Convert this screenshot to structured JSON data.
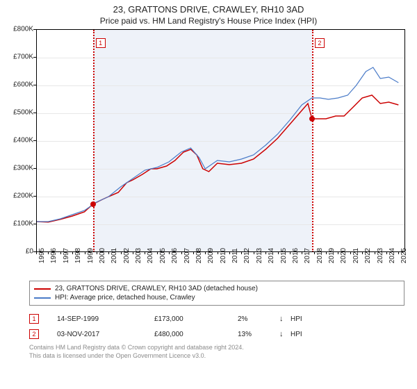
{
  "title": "23, GRATTONS DRIVE, CRAWLEY, RH10 3AD",
  "subtitle": "Price paid vs. HM Land Registry's House Price Index (HPI)",
  "chart": {
    "type": "line",
    "background_color": "#ffffff",
    "shaded_band_color": "#eef2f9",
    "grid_color": "#e7e7e7",
    "axis_color": "#000000",
    "ylim": [
      0,
      800000
    ],
    "ytick_step": 100000,
    "ytick_labels": [
      "£0",
      "£100K",
      "£200K",
      "£300K",
      "£400K",
      "£500K",
      "£600K",
      "£700K",
      "£800K"
    ],
    "xlim_year": [
      1995,
      2025.5
    ],
    "xtick_years": [
      1995,
      1996,
      1997,
      1998,
      1999,
      2000,
      2001,
      2002,
      2003,
      2004,
      2005,
      2006,
      2007,
      2008,
      2009,
      2010,
      2011,
      2012,
      2013,
      2014,
      2015,
      2016,
      2017,
      2018,
      2019,
      2020,
      2021,
      2022,
      2023,
      2024,
      2025
    ],
    "tick_fontsize": 10,
    "shaded_band_year": [
      1999.7,
      2017.84
    ],
    "series": [
      {
        "name": "price_paid",
        "label": "23, GRATTONS DRIVE, CRAWLEY, RH10 3AD (detached house)",
        "color": "#cc0000",
        "line_width": 1.5,
        "data": [
          [
            1995.0,
            110000
          ],
          [
            1996.0,
            108000
          ],
          [
            1997.0,
            118000
          ],
          [
            1998.0,
            130000
          ],
          [
            1999.0,
            145000
          ],
          [
            1999.7,
            173000
          ],
          [
            2000.5,
            190000
          ],
          [
            2001.0,
            200000
          ],
          [
            2001.8,
            215000
          ],
          [
            2002.5,
            250000
          ],
          [
            2003.0,
            260000
          ],
          [
            2003.8,
            280000
          ],
          [
            2004.5,
            300000
          ],
          [
            2005.0,
            300000
          ],
          [
            2005.8,
            310000
          ],
          [
            2006.5,
            330000
          ],
          [
            2007.2,
            360000
          ],
          [
            2007.8,
            370000
          ],
          [
            2008.3,
            350000
          ],
          [
            2008.8,
            300000
          ],
          [
            2009.3,
            290000
          ],
          [
            2010.0,
            320000
          ],
          [
            2011.0,
            315000
          ],
          [
            2012.0,
            320000
          ],
          [
            2013.0,
            335000
          ],
          [
            2014.0,
            370000
          ],
          [
            2015.0,
            410000
          ],
          [
            2016.0,
            460000
          ],
          [
            2016.8,
            500000
          ],
          [
            2017.5,
            535000
          ],
          [
            2017.84,
            480000
          ],
          [
            2018.5,
            480000
          ],
          [
            2019.0,
            480000
          ],
          [
            2019.8,
            490000
          ],
          [
            2020.5,
            490000
          ],
          [
            2021.2,
            520000
          ],
          [
            2022.0,
            555000
          ],
          [
            2022.8,
            565000
          ],
          [
            2023.5,
            535000
          ],
          [
            2024.2,
            540000
          ],
          [
            2025.0,
            530000
          ]
        ]
      },
      {
        "name": "hpi",
        "label": "HPI: Average price, detached house, Crawley",
        "color": "#4a7bc8",
        "line_width": 1.2,
        "data": [
          [
            1995.0,
            110000
          ],
          [
            1996.0,
            110000
          ],
          [
            1997.0,
            120000
          ],
          [
            1998.0,
            135000
          ],
          [
            1999.0,
            150000
          ],
          [
            2000.0,
            180000
          ],
          [
            2001.0,
            200000
          ],
          [
            2002.0,
            235000
          ],
          [
            2003.0,
            265000
          ],
          [
            2004.0,
            295000
          ],
          [
            2005.0,
            305000
          ],
          [
            2006.0,
            325000
          ],
          [
            2007.0,
            360000
          ],
          [
            2007.8,
            375000
          ],
          [
            2008.5,
            340000
          ],
          [
            2009.0,
            300000
          ],
          [
            2010.0,
            330000
          ],
          [
            2011.0,
            325000
          ],
          [
            2012.0,
            335000
          ],
          [
            2013.0,
            350000
          ],
          [
            2014.0,
            385000
          ],
          [
            2015.0,
            425000
          ],
          [
            2016.0,
            475000
          ],
          [
            2017.0,
            530000
          ],
          [
            2017.84,
            555000
          ],
          [
            2018.5,
            555000
          ],
          [
            2019.2,
            550000
          ],
          [
            2020.0,
            555000
          ],
          [
            2020.8,
            565000
          ],
          [
            2021.5,
            600000
          ],
          [
            2022.3,
            650000
          ],
          [
            2022.9,
            665000
          ],
          [
            2023.5,
            625000
          ],
          [
            2024.2,
            630000
          ],
          [
            2025.0,
            610000
          ]
        ]
      }
    ],
    "events": [
      {
        "id": "1",
        "year": 1999.7,
        "value": 173000,
        "color": "#cc0000"
      },
      {
        "id": "2",
        "year": 2017.84,
        "value": 480000,
        "color": "#cc0000"
      }
    ],
    "event_dot_color": "#cc0000"
  },
  "legend": {
    "border_color": "#888888",
    "fontsize": 10
  },
  "markers_table": [
    {
      "id": "1",
      "color": "#cc0000",
      "date": "14-SEP-1999",
      "price": "£173,000",
      "pct": "2%",
      "arrow": "↓",
      "vs": "HPI"
    },
    {
      "id": "2",
      "color": "#cc0000",
      "date": "03-NOV-2017",
      "price": "£480,000",
      "pct": "13%",
      "arrow": "↓",
      "vs": "HPI"
    }
  ],
  "footer": {
    "line1": "Contains HM Land Registry data © Crown copyright and database right 2024.",
    "line2": "This data is licensed under the Open Government Licence v3.0.",
    "color": "#8a8a8a",
    "fontsize": 9
  }
}
